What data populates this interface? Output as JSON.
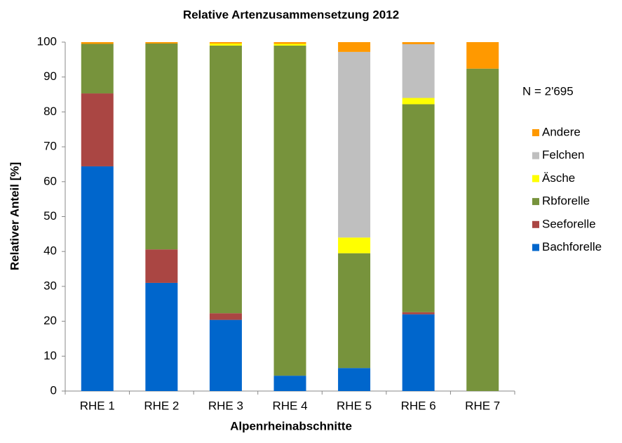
{
  "chart_data": {
    "type": "stacked_bar",
    "title": "Relative Artenzusammensetzung 2012",
    "x_label": "Alpenrheinabschnitte",
    "y_label": "Relativer Anteil [%]",
    "annotation": "N = 2'695",
    "categories": [
      "RHE 1",
      "RHE 2",
      "RHE 3",
      "RHE 4",
      "RHE 5",
      "RHE 6",
      "RHE 7"
    ],
    "series": [
      {
        "name": "Bachforelle",
        "color": "#0066cc",
        "values": [
          64.4,
          31.0,
          20.4,
          4.4,
          6.6,
          22.0,
          0
        ]
      },
      {
        "name": "Seeforelle",
        "color": "#aa4643",
        "values": [
          20.9,
          9.6,
          1.9,
          0,
          0,
          0.6,
          0
        ]
      },
      {
        "name": "Rbforelle",
        "color": "#77933c",
        "values": [
          14.2,
          59.0,
          76.7,
          94.6,
          32.9,
          59.6,
          92.4
        ]
      },
      {
        "name": "Äsche",
        "color": "#ffff00",
        "values": [
          0,
          0,
          0.6,
          0.5,
          4.5,
          1.8,
          0
        ]
      },
      {
        "name": "Felchen",
        "color": "#bfbfbf",
        "values": [
          0,
          0,
          0,
          0,
          53.2,
          15.4,
          0
        ]
      },
      {
        "name": "Andere",
        "color": "#ff9900",
        "values": [
          0.5,
          0.4,
          0.4,
          0.5,
          2.8,
          0.6,
          7.6
        ]
      }
    ],
    "ylim": [
      0,
      100
    ],
    "yticks": [
      0,
      10,
      20,
      30,
      40,
      50,
      60,
      70,
      80,
      90,
      100
    ],
    "grid": false
  }
}
